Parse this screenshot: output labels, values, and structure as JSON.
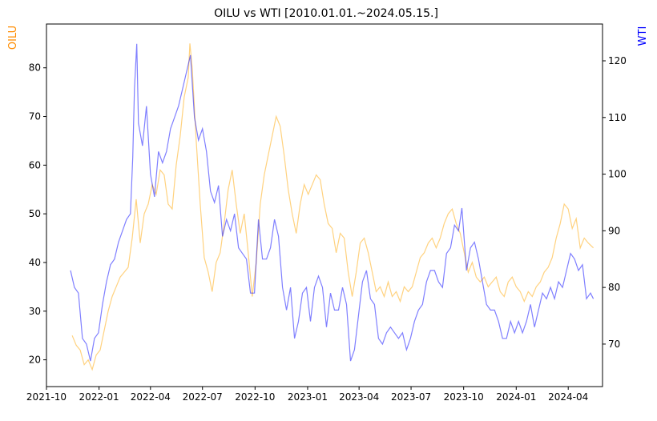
{
  "chart_data": {
    "type": "line",
    "title": "OILU vs WTI [2010.01.01.~2024.05.15.]",
    "xlabel": "",
    "x_ticks": [
      "2021-10",
      "2022-01",
      "2022-04",
      "2022-07",
      "2022-10",
      "2023-01",
      "2023-04",
      "2023-07",
      "2023-10",
      "2024-01",
      "2024-04"
    ],
    "x_range": [
      "2021-10-01",
      "2024-05-31"
    ],
    "grid": false,
    "legend": "none",
    "axes": {
      "left": {
        "label": "OILU",
        "color": "#ff8c00",
        "range": [
          14.5,
          89
        ],
        "ticks": [
          20,
          30,
          40,
          50,
          60,
          70,
          80
        ]
      },
      "right": {
        "label": "WTI",
        "color": "#0000ff",
        "range": [
          62.5,
          126.5
        ],
        "ticks": [
          70,
          80,
          90,
          100,
          110,
          120
        ]
      }
    },
    "series": [
      {
        "name": "OILU",
        "axis": "left",
        "color": "#ffa500",
        "points": [
          [
            "2021-11-15",
            25
          ],
          [
            "2021-11-22",
            23
          ],
          [
            "2021-11-29",
            22
          ],
          [
            "2021-12-06",
            19
          ],
          [
            "2021-12-13",
            20
          ],
          [
            "2021-12-20",
            18
          ],
          [
            "2021-12-27",
            21
          ],
          [
            "2022-01-03",
            22
          ],
          [
            "2022-01-10",
            26
          ],
          [
            "2022-01-17",
            30
          ],
          [
            "2022-01-24",
            33
          ],
          [
            "2022-01-31",
            35
          ],
          [
            "2022-02-07",
            37
          ],
          [
            "2022-02-14",
            38
          ],
          [
            "2022-02-21",
            39
          ],
          [
            "2022-02-28",
            45
          ],
          [
            "2022-03-07",
            53
          ],
          [
            "2022-03-14",
            44
          ],
          [
            "2022-03-21",
            50
          ],
          [
            "2022-03-28",
            52
          ],
          [
            "2022-04-04",
            56
          ],
          [
            "2022-04-11",
            54
          ],
          [
            "2022-04-18",
            59
          ],
          [
            "2022-04-25",
            58
          ],
          [
            "2022-05-02",
            52
          ],
          [
            "2022-05-09",
            51
          ],
          [
            "2022-05-16",
            60
          ],
          [
            "2022-05-23",
            66
          ],
          [
            "2022-05-30",
            74
          ],
          [
            "2022-06-06",
            78
          ],
          [
            "2022-06-09",
            85
          ],
          [
            "2022-06-13",
            80
          ],
          [
            "2022-06-20",
            65
          ],
          [
            "2022-06-27",
            52
          ],
          [
            "2022-07-04",
            41
          ],
          [
            "2022-07-11",
            38
          ],
          [
            "2022-07-18",
            34
          ],
          [
            "2022-07-25",
            40
          ],
          [
            "2022-08-01",
            42
          ],
          [
            "2022-08-08",
            48
          ],
          [
            "2022-08-15",
            55
          ],
          [
            "2022-08-22",
            59
          ],
          [
            "2022-08-29",
            52
          ],
          [
            "2022-09-05",
            46
          ],
          [
            "2022-09-12",
            50
          ],
          [
            "2022-09-19",
            42
          ],
          [
            "2022-09-26",
            33
          ],
          [
            "2022-10-03",
            40
          ],
          [
            "2022-10-10",
            52
          ],
          [
            "2022-10-17",
            58
          ],
          [
            "2022-10-24",
            62
          ],
          [
            "2022-10-31",
            66
          ],
          [
            "2022-11-07",
            70
          ],
          [
            "2022-11-14",
            68
          ],
          [
            "2022-11-21",
            62
          ],
          [
            "2022-11-28",
            55
          ],
          [
            "2022-12-05",
            50
          ],
          [
            "2022-12-12",
            46
          ],
          [
            "2022-12-19",
            52
          ],
          [
            "2022-12-26",
            56
          ],
          [
            "2023-01-02",
            54
          ],
          [
            "2023-01-09",
            56
          ],
          [
            "2023-01-16",
            58
          ],
          [
            "2023-01-23",
            57
          ],
          [
            "2023-01-30",
            52
          ],
          [
            "2023-02-06",
            48
          ],
          [
            "2023-02-13",
            47
          ],
          [
            "2023-02-20",
            42
          ],
          [
            "2023-02-27",
            46
          ],
          [
            "2023-03-06",
            45
          ],
          [
            "2023-03-13",
            38
          ],
          [
            "2023-03-20",
            33
          ],
          [
            "2023-03-27",
            38
          ],
          [
            "2023-04-03",
            44
          ],
          [
            "2023-04-10",
            45
          ],
          [
            "2023-04-17",
            42
          ],
          [
            "2023-04-24",
            38
          ],
          [
            "2023-05-01",
            34
          ],
          [
            "2023-05-08",
            35
          ],
          [
            "2023-05-15",
            33
          ],
          [
            "2023-05-22",
            36
          ],
          [
            "2023-05-29",
            33
          ],
          [
            "2023-06-05",
            34
          ],
          [
            "2023-06-12",
            32
          ],
          [
            "2023-06-19",
            35
          ],
          [
            "2023-06-26",
            34
          ],
          [
            "2023-07-03",
            35
          ],
          [
            "2023-07-10",
            38
          ],
          [
            "2023-07-17",
            41
          ],
          [
            "2023-07-24",
            42
          ],
          [
            "2023-07-31",
            44
          ],
          [
            "2023-08-07",
            45
          ],
          [
            "2023-08-14",
            43
          ],
          [
            "2023-08-21",
            45
          ],
          [
            "2023-08-28",
            48
          ],
          [
            "2023-09-04",
            50
          ],
          [
            "2023-09-11",
            51
          ],
          [
            "2023-09-18",
            48
          ],
          [
            "2023-09-25",
            46
          ],
          [
            "2023-10-02",
            42
          ],
          [
            "2023-10-09",
            38
          ],
          [
            "2023-10-16",
            40
          ],
          [
            "2023-10-23",
            37
          ],
          [
            "2023-10-30",
            36
          ],
          [
            "2023-11-06",
            37
          ],
          [
            "2023-11-13",
            35
          ],
          [
            "2023-11-20",
            36
          ],
          [
            "2023-11-27",
            37
          ],
          [
            "2023-12-04",
            34
          ],
          [
            "2023-12-11",
            33
          ],
          [
            "2023-12-18",
            36
          ],
          [
            "2023-12-25",
            37
          ],
          [
            "2024-01-01",
            35
          ],
          [
            "2024-01-08",
            34
          ],
          [
            "2024-01-15",
            32
          ],
          [
            "2024-01-22",
            34
          ],
          [
            "2024-01-29",
            33
          ],
          [
            "2024-02-05",
            35
          ],
          [
            "2024-02-12",
            36
          ],
          [
            "2024-02-19",
            38
          ],
          [
            "2024-02-26",
            39
          ],
          [
            "2024-03-04",
            41
          ],
          [
            "2024-03-11",
            45
          ],
          [
            "2024-03-18",
            48
          ],
          [
            "2024-03-25",
            52
          ],
          [
            "2024-04-01",
            51
          ],
          [
            "2024-04-08",
            47
          ],
          [
            "2024-04-15",
            49
          ],
          [
            "2024-04-22",
            43
          ],
          [
            "2024-04-29",
            45
          ],
          [
            "2024-05-06",
            44
          ],
          [
            "2024-05-15",
            43
          ]
        ]
      },
      {
        "name": "WTI",
        "axis": "right",
        "color": "#0000ff",
        "points": [
          [
            "2021-11-12",
            83
          ],
          [
            "2021-11-19",
            80
          ],
          [
            "2021-11-26",
            79
          ],
          [
            "2021-12-03",
            71
          ],
          [
            "2021-12-10",
            70
          ],
          [
            "2021-12-17",
            67
          ],
          [
            "2021-12-24",
            71
          ],
          [
            "2021-12-31",
            72
          ],
          [
            "2022-01-07",
            77
          ],
          [
            "2022-01-14",
            81
          ],
          [
            "2022-01-21",
            84
          ],
          [
            "2022-01-28",
            85
          ],
          [
            "2022-02-04",
            88
          ],
          [
            "2022-02-11",
            90
          ],
          [
            "2022-02-18",
            92
          ],
          [
            "2022-02-25",
            93
          ],
          [
            "2022-03-01",
            103
          ],
          [
            "2022-03-04",
            115
          ],
          [
            "2022-03-08",
            123
          ],
          [
            "2022-03-11",
            109
          ],
          [
            "2022-03-18",
            105
          ],
          [
            "2022-03-25",
            112
          ],
          [
            "2022-04-01",
            100
          ],
          [
            "2022-04-08",
            96
          ],
          [
            "2022-04-15",
            104
          ],
          [
            "2022-04-22",
            102
          ],
          [
            "2022-04-29",
            104
          ],
          [
            "2022-05-06",
            108
          ],
          [
            "2022-05-13",
            110
          ],
          [
            "2022-05-20",
            112
          ],
          [
            "2022-05-27",
            115
          ],
          [
            "2022-06-03",
            118
          ],
          [
            "2022-06-10",
            121
          ],
          [
            "2022-06-17",
            110
          ],
          [
            "2022-06-24",
            106
          ],
          [
            "2022-07-01",
            108
          ],
          [
            "2022-07-08",
            104
          ],
          [
            "2022-07-15",
            97
          ],
          [
            "2022-07-22",
            95
          ],
          [
            "2022-07-29",
            98
          ],
          [
            "2022-08-05",
            89
          ],
          [
            "2022-08-12",
            92
          ],
          [
            "2022-08-19",
            90
          ],
          [
            "2022-08-26",
            93
          ],
          [
            "2022-09-02",
            87
          ],
          [
            "2022-09-09",
            86
          ],
          [
            "2022-09-16",
            85
          ],
          [
            "2022-09-23",
            79
          ],
          [
            "2022-09-30",
            79
          ],
          [
            "2022-10-07",
            92
          ],
          [
            "2022-10-14",
            85
          ],
          [
            "2022-10-21",
            85
          ],
          [
            "2022-10-28",
            87
          ],
          [
            "2022-11-04",
            92
          ],
          [
            "2022-11-11",
            89
          ],
          [
            "2022-11-18",
            80
          ],
          [
            "2022-11-25",
            76
          ],
          [
            "2022-12-02",
            80
          ],
          [
            "2022-12-09",
            71
          ],
          [
            "2022-12-16",
            74
          ],
          [
            "2022-12-23",
            79
          ],
          [
            "2022-12-30",
            80
          ],
          [
            "2023-01-06",
            74
          ],
          [
            "2023-01-13",
            80
          ],
          [
            "2023-01-20",
            82
          ],
          [
            "2023-01-27",
            80
          ],
          [
            "2023-02-03",
            73
          ],
          [
            "2023-02-10",
            79
          ],
          [
            "2023-02-17",
            76
          ],
          [
            "2023-02-24",
            76
          ],
          [
            "2023-03-03",
            80
          ],
          [
            "2023-03-10",
            77
          ],
          [
            "2023-03-17",
            67
          ],
          [
            "2023-03-24",
            69
          ],
          [
            "2023-03-31",
            75
          ],
          [
            "2023-04-07",
            81
          ],
          [
            "2023-04-14",
            83
          ],
          [
            "2023-04-21",
            78
          ],
          [
            "2023-04-28",
            77
          ],
          [
            "2023-05-05",
            71
          ],
          [
            "2023-05-12",
            70
          ],
          [
            "2023-05-19",
            72
          ],
          [
            "2023-05-26",
            73
          ],
          [
            "2023-06-02",
            72
          ],
          [
            "2023-06-09",
            71
          ],
          [
            "2023-06-16",
            72
          ],
          [
            "2023-06-23",
            69
          ],
          [
            "2023-06-30",
            71
          ],
          [
            "2023-07-07",
            74
          ],
          [
            "2023-07-14",
            76
          ],
          [
            "2023-07-21",
            77
          ],
          [
            "2023-07-28",
            81
          ],
          [
            "2023-08-04",
            83
          ],
          [
            "2023-08-11",
            83
          ],
          [
            "2023-08-18",
            81
          ],
          [
            "2023-08-25",
            80
          ],
          [
            "2023-09-01",
            86
          ],
          [
            "2023-09-08",
            87
          ],
          [
            "2023-09-15",
            91
          ],
          [
            "2023-09-22",
            90
          ],
          [
            "2023-09-28",
            94
          ],
          [
            "2023-10-06",
            83
          ],
          [
            "2023-10-13",
            87
          ],
          [
            "2023-10-20",
            88
          ],
          [
            "2023-10-27",
            85
          ],
          [
            "2023-11-03",
            81
          ],
          [
            "2023-11-10",
            77
          ],
          [
            "2023-11-17",
            76
          ],
          [
            "2023-11-24",
            76
          ],
          [
            "2023-12-01",
            74
          ],
          [
            "2023-12-08",
            71
          ],
          [
            "2023-12-15",
            71
          ],
          [
            "2023-12-22",
            74
          ],
          [
            "2023-12-29",
            72
          ],
          [
            "2024-01-05",
            74
          ],
          [
            "2024-01-12",
            72
          ],
          [
            "2024-01-19",
            74
          ],
          [
            "2024-01-26",
            77
          ],
          [
            "2024-02-02",
            73
          ],
          [
            "2024-02-09",
            76
          ],
          [
            "2024-02-16",
            79
          ],
          [
            "2024-02-23",
            78
          ],
          [
            "2024-03-01",
            80
          ],
          [
            "2024-03-08",
            78
          ],
          [
            "2024-03-15",
            81
          ],
          [
            "2024-03-22",
            80
          ],
          [
            "2024-03-29",
            83
          ],
          [
            "2024-04-05",
            86
          ],
          [
            "2024-04-12",
            85
          ],
          [
            "2024-04-19",
            83
          ],
          [
            "2024-04-26",
            84
          ],
          [
            "2024-05-03",
            78
          ],
          [
            "2024-05-10",
            79
          ],
          [
            "2024-05-15",
            78
          ]
        ]
      }
    ]
  }
}
